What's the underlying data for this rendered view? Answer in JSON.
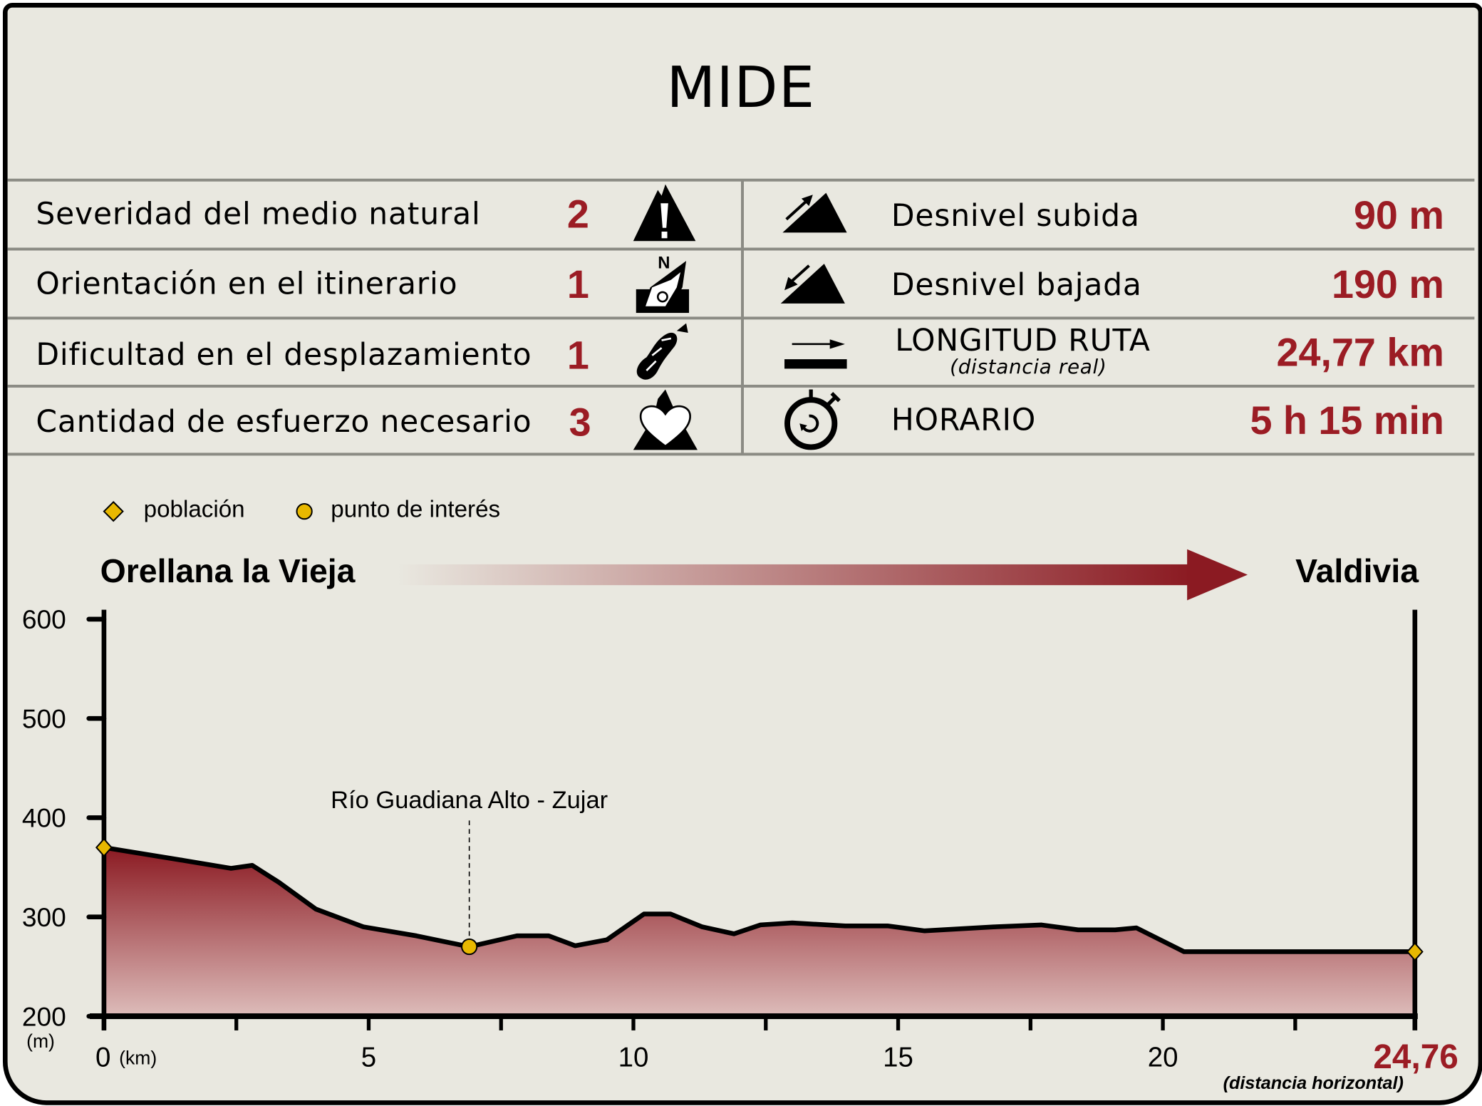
{
  "title": "MIDE",
  "mide": [
    {
      "label": "Severidad del medio natural",
      "value": "2",
      "icon": "mountain-warning-icon"
    },
    {
      "label": "Orientación en el itinerario",
      "value": "1",
      "icon": "compass-north-icon"
    },
    {
      "label": "Dificultad en el desplazamiento",
      "value": "1",
      "icon": "footprint-icon"
    },
    {
      "label": "Cantidad de esfuerzo necesario",
      "value": "3",
      "icon": "heart-mountain-icon"
    }
  ],
  "stats": [
    {
      "label": "Desnivel subida",
      "value": "90 m",
      "icon": "slope-up-icon"
    },
    {
      "label": "Desnivel bajada",
      "value": "190 m",
      "icon": "slope-down-icon"
    },
    {
      "label": "LONGITUD RUTA",
      "sublabel": "(distancia real)",
      "value": "24,77 km",
      "icon": "distance-icon"
    },
    {
      "label": "HORARIO",
      "value": "5 h 15 min",
      "icon": "stopwatch-icon"
    }
  ],
  "legend": {
    "town": "población",
    "poi": "punto de interés"
  },
  "route": {
    "start": "Orellana la Vieja",
    "end": "Valdivia"
  },
  "colors": {
    "accent": "#9b1c24",
    "background": "#e9e8e0",
    "marker": "#e8b800"
  },
  "chart_data": {
    "type": "area",
    "xlabel": "(km)",
    "ylabel": "(m)",
    "xlim": [
      0,
      24.76
    ],
    "ylim": [
      200,
      600
    ],
    "xticks": [
      0,
      5,
      10,
      15,
      20
    ],
    "yticks": [
      200,
      300,
      400,
      500,
      600
    ],
    "x_end_label": "24,76",
    "x_end_note": "(distancia horizontal)",
    "x": [
      0,
      1.5,
      2.4,
      2.8,
      3.3,
      4.0,
      4.9,
      5.9,
      6.9,
      7.8,
      8.4,
      8.9,
      9.5,
      10.2,
      10.7,
      11.3,
      11.9,
      12.4,
      13.0,
      14.0,
      14.8,
      15.5,
      16.8,
      17.7,
      18.4,
      19.1,
      19.5,
      20.4,
      24.76
    ],
    "y": [
      370,
      357,
      349,
      352,
      335,
      308,
      290,
      281,
      270,
      281,
      281,
      271,
      277,
      303,
      303,
      290,
      283,
      292,
      294,
      291,
      291,
      286,
      290,
      292,
      287,
      287,
      289,
      265,
      265
    ],
    "markers": [
      {
        "type": "población",
        "x": 0,
        "y": 370
      },
      {
        "type": "punto de interés",
        "x": 6.9,
        "y": 270,
        "label": "Río Guadiana Alto - Zujar"
      },
      {
        "type": "población",
        "x": 24.76,
        "y": 265
      }
    ]
  }
}
